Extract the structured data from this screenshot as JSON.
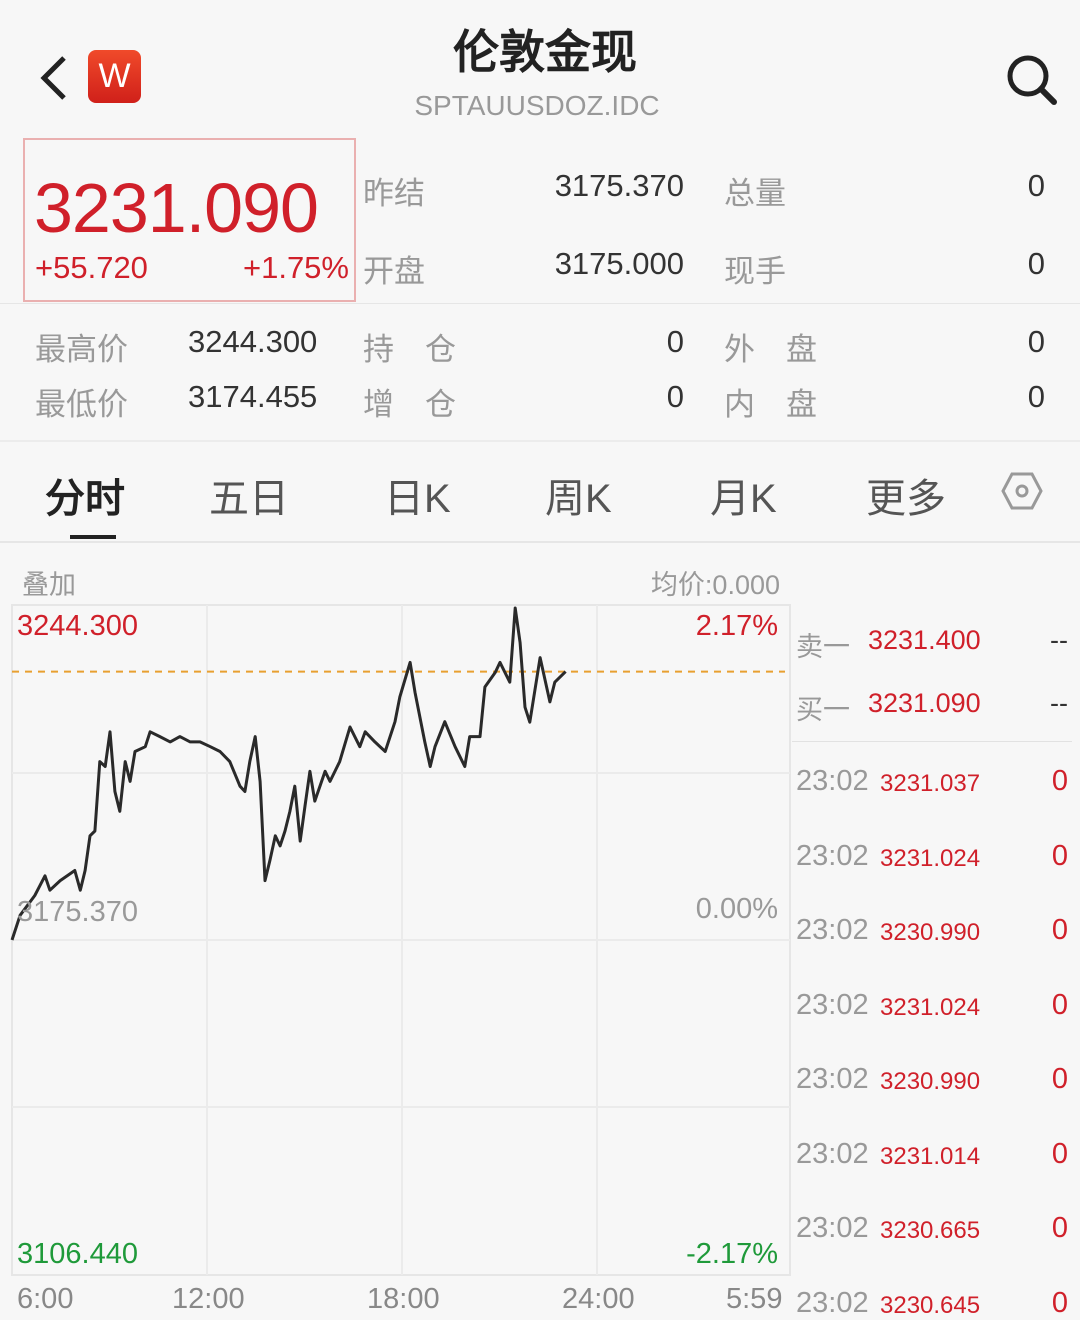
{
  "header": {
    "title": "伦敦金现",
    "subtitle": "SPTAUUSDOZ.IDC",
    "logo_letter": "W",
    "back_icon": "chevron-left-icon",
    "search_icon": "search-icon"
  },
  "quote": {
    "price": "3231.090",
    "change": "+55.720",
    "change_pct": "+1.75%"
  },
  "stats": [
    {
      "label": "昨结",
      "value": "3175.370",
      "label2": "总量",
      "value2": "0"
    },
    {
      "label": "开盘",
      "value": "3175.000",
      "label2": "现手",
      "value2": "0"
    },
    {
      "label": "最高价",
      "value": "3244.300",
      "label2": "持　仓",
      "value2": "0",
      "label3": "外　盘",
      "value3": "0"
    },
    {
      "label": "最低价",
      "value": "3174.455",
      "label2": "增　仓",
      "value2": "0",
      "label3": "内　盘",
      "value3": "0"
    }
  ],
  "tabs": [
    "分时",
    "五日",
    "日K",
    "周K",
    "月K",
    "更多"
  ],
  "active_tab": "分时",
  "chart_toolbar": {
    "overlay": "叠加",
    "avg_price": "均价:0.000"
  },
  "colors": {
    "up": "#d0202a",
    "down": "#1f9a3a",
    "line": "#2a2a2a",
    "ref_line": "#e8a030"
  },
  "chart_data": {
    "type": "line",
    "ylim": [
      3106.44,
      3244.3
    ],
    "reference": 3175.37,
    "y_labels": {
      "top": "3244.300",
      "mid": "3175.370",
      "bottom": "3106.440"
    },
    "pct_labels": {
      "top": "2.17%",
      "mid": "0.00%",
      "bottom": "-2.17%"
    },
    "x_ticks": [
      "6:00",
      "12:00",
      "18:00",
      "24:00",
      "5:59"
    ],
    "series": [
      [
        "06:00",
        3175.37
      ],
      [
        "06:15",
        3180.5
      ],
      [
        "06:42",
        3184.6
      ],
      [
        "07:01",
        3188.7
      ],
      [
        "07:10",
        3185.7
      ],
      [
        "07:29",
        3187.7
      ],
      [
        "07:56",
        3189.8
      ],
      [
        "08:06",
        3185.7
      ],
      [
        "08:15",
        3189.8
      ],
      [
        "08:24",
        3197.0
      ],
      [
        "08:33",
        3198.0
      ],
      [
        "08:42",
        3212.4
      ],
      [
        "08:52",
        3211.4
      ],
      [
        "09:01",
        3218.6
      ],
      [
        "09:10",
        3206.2
      ],
      [
        "09:19",
        3202.1
      ],
      [
        "09:29",
        3212.4
      ],
      [
        "09:38",
        3208.3
      ],
      [
        "09:47",
        3214.5
      ],
      [
        "10:06",
        3215.5
      ],
      [
        "10:15",
        3218.6
      ],
      [
        "10:33",
        3217.6
      ],
      [
        "10:52",
        3216.5
      ],
      [
        "11:10",
        3217.6
      ],
      [
        "11:29",
        3216.5
      ],
      [
        "11:47",
        3216.5
      ],
      [
        "12:06",
        3215.5
      ],
      [
        "12:24",
        3214.5
      ],
      [
        "12:42",
        3212.4
      ],
      [
        "13:01",
        3207.3
      ],
      [
        "13:10",
        3206.2
      ],
      [
        "13:19",
        3212.4
      ],
      [
        "13:29",
        3217.6
      ],
      [
        "13:38",
        3208.3
      ],
      [
        "13:47",
        3187.7
      ],
      [
        "13:56",
        3191.8
      ],
      [
        "14:06",
        3197.0
      ],
      [
        "14:15",
        3194.9
      ],
      [
        "14:24",
        3198.0
      ],
      [
        "14:33",
        3202.1
      ],
      [
        "14:42",
        3207.3
      ],
      [
        "14:52",
        3195.9
      ],
      [
        "15:01",
        3203.2
      ],
      [
        "15:10",
        3210.4
      ],
      [
        "15:19",
        3204.2
      ],
      [
        "15:38",
        3210.4
      ],
      [
        "15:47",
        3208.3
      ],
      [
        "16:05",
        3212.4
      ],
      [
        "16:24",
        3219.6
      ],
      [
        "16:42",
        3215.5
      ],
      [
        "16:52",
        3218.6
      ],
      [
        "17:10",
        3216.5
      ],
      [
        "17:29",
        3214.5
      ],
      [
        "17:47",
        3220.7
      ],
      [
        "17:56",
        3225.8
      ],
      [
        "18:15",
        3233.0
      ],
      [
        "18:24",
        3226.8
      ],
      [
        "18:42",
        3216.5
      ],
      [
        "18:52",
        3211.4
      ],
      [
        "19:01",
        3215.5
      ],
      [
        "19:19",
        3220.7
      ],
      [
        "19:38",
        3215.5
      ],
      [
        "19:56",
        3211.4
      ],
      [
        "20:05",
        3217.6
      ],
      [
        "20:24",
        3217.6
      ],
      [
        "20:33",
        3227.9
      ],
      [
        "20:52",
        3230.9
      ],
      [
        "21:01",
        3233.0
      ],
      [
        "21:19",
        3228.9
      ],
      [
        "21:29",
        3244.3
      ],
      [
        "21:38",
        3237.1
      ],
      [
        "21:47",
        3223.7
      ],
      [
        "21:56",
        3220.6
      ],
      [
        "22:15",
        3234.0
      ],
      [
        "22:33",
        3224.8
      ],
      [
        "22:42",
        3228.9
      ],
      [
        "23:02",
        3231.09
      ]
    ]
  },
  "order_book": [
    {
      "label": "卖一",
      "price": "3231.400",
      "qty": "--"
    },
    {
      "label": "买一",
      "price": "3231.090",
      "qty": "--"
    }
  ],
  "ticks": [
    {
      "time": "23:02",
      "price": "3231.037",
      "qty": "0"
    },
    {
      "time": "23:02",
      "price": "3231.024",
      "qty": "0"
    },
    {
      "time": "23:02",
      "price": "3230.990",
      "qty": "0"
    },
    {
      "time": "23:02",
      "price": "3231.024",
      "qty": "0"
    },
    {
      "time": "23:02",
      "price": "3230.990",
      "qty": "0"
    },
    {
      "time": "23:02",
      "price": "3231.014",
      "qty": "0"
    },
    {
      "time": "23:02",
      "price": "3230.665",
      "qty": "0"
    },
    {
      "time": "23:02",
      "price": "3230.645",
      "qty": "0"
    }
  ]
}
